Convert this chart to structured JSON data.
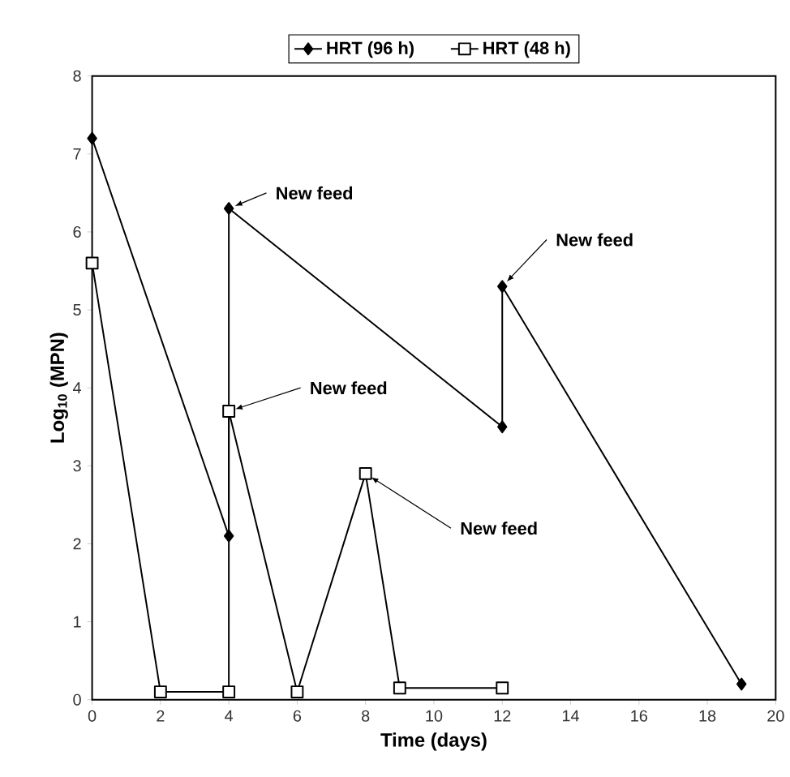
{
  "chart_data": {
    "type": "line",
    "xlabel": "Time (days)",
    "ylabel": "Log$_{10}$ (MPN)",
    "xlim": [
      0,
      20
    ],
    "xticks": [
      0,
      2,
      4,
      6,
      8,
      10,
      12,
      14,
      16,
      18,
      20
    ],
    "ylim": [
      0,
      8
    ],
    "yticks": [
      0,
      1,
      2,
      3,
      4,
      5,
      6,
      7,
      8
    ],
    "grid": false,
    "legend": "top",
    "series": [
      {
        "name": "HRT (96 h)",
        "color": "#000000",
        "marker": "diamond",
        "x": [
          0,
          4,
          4,
          12,
          12,
          19
        ],
        "values": [
          7.2,
          2.1,
          6.3,
          3.5,
          5.3,
          0.2
        ]
      },
      {
        "name": "HRT (48 h)",
        "color": "#000000",
        "marker": "square",
        "x": [
          0,
          2,
          4,
          4,
          6,
          8,
          9,
          12
        ],
        "values": [
          5.6,
          0.1,
          0.1,
          3.7,
          0.1,
          2.9,
          0.15,
          0.15
        ]
      }
    ],
    "annotations": [
      {
        "text": "New feed",
        "x": 4,
        "y": 6.3
      },
      {
        "text": "New feed",
        "x": 4,
        "y": 3.7
      },
      {
        "text": "New feed",
        "x": 8,
        "y": 2.9
      },
      {
        "text": "New feed",
        "x": 12,
        "y": 5.3
      }
    ]
  }
}
